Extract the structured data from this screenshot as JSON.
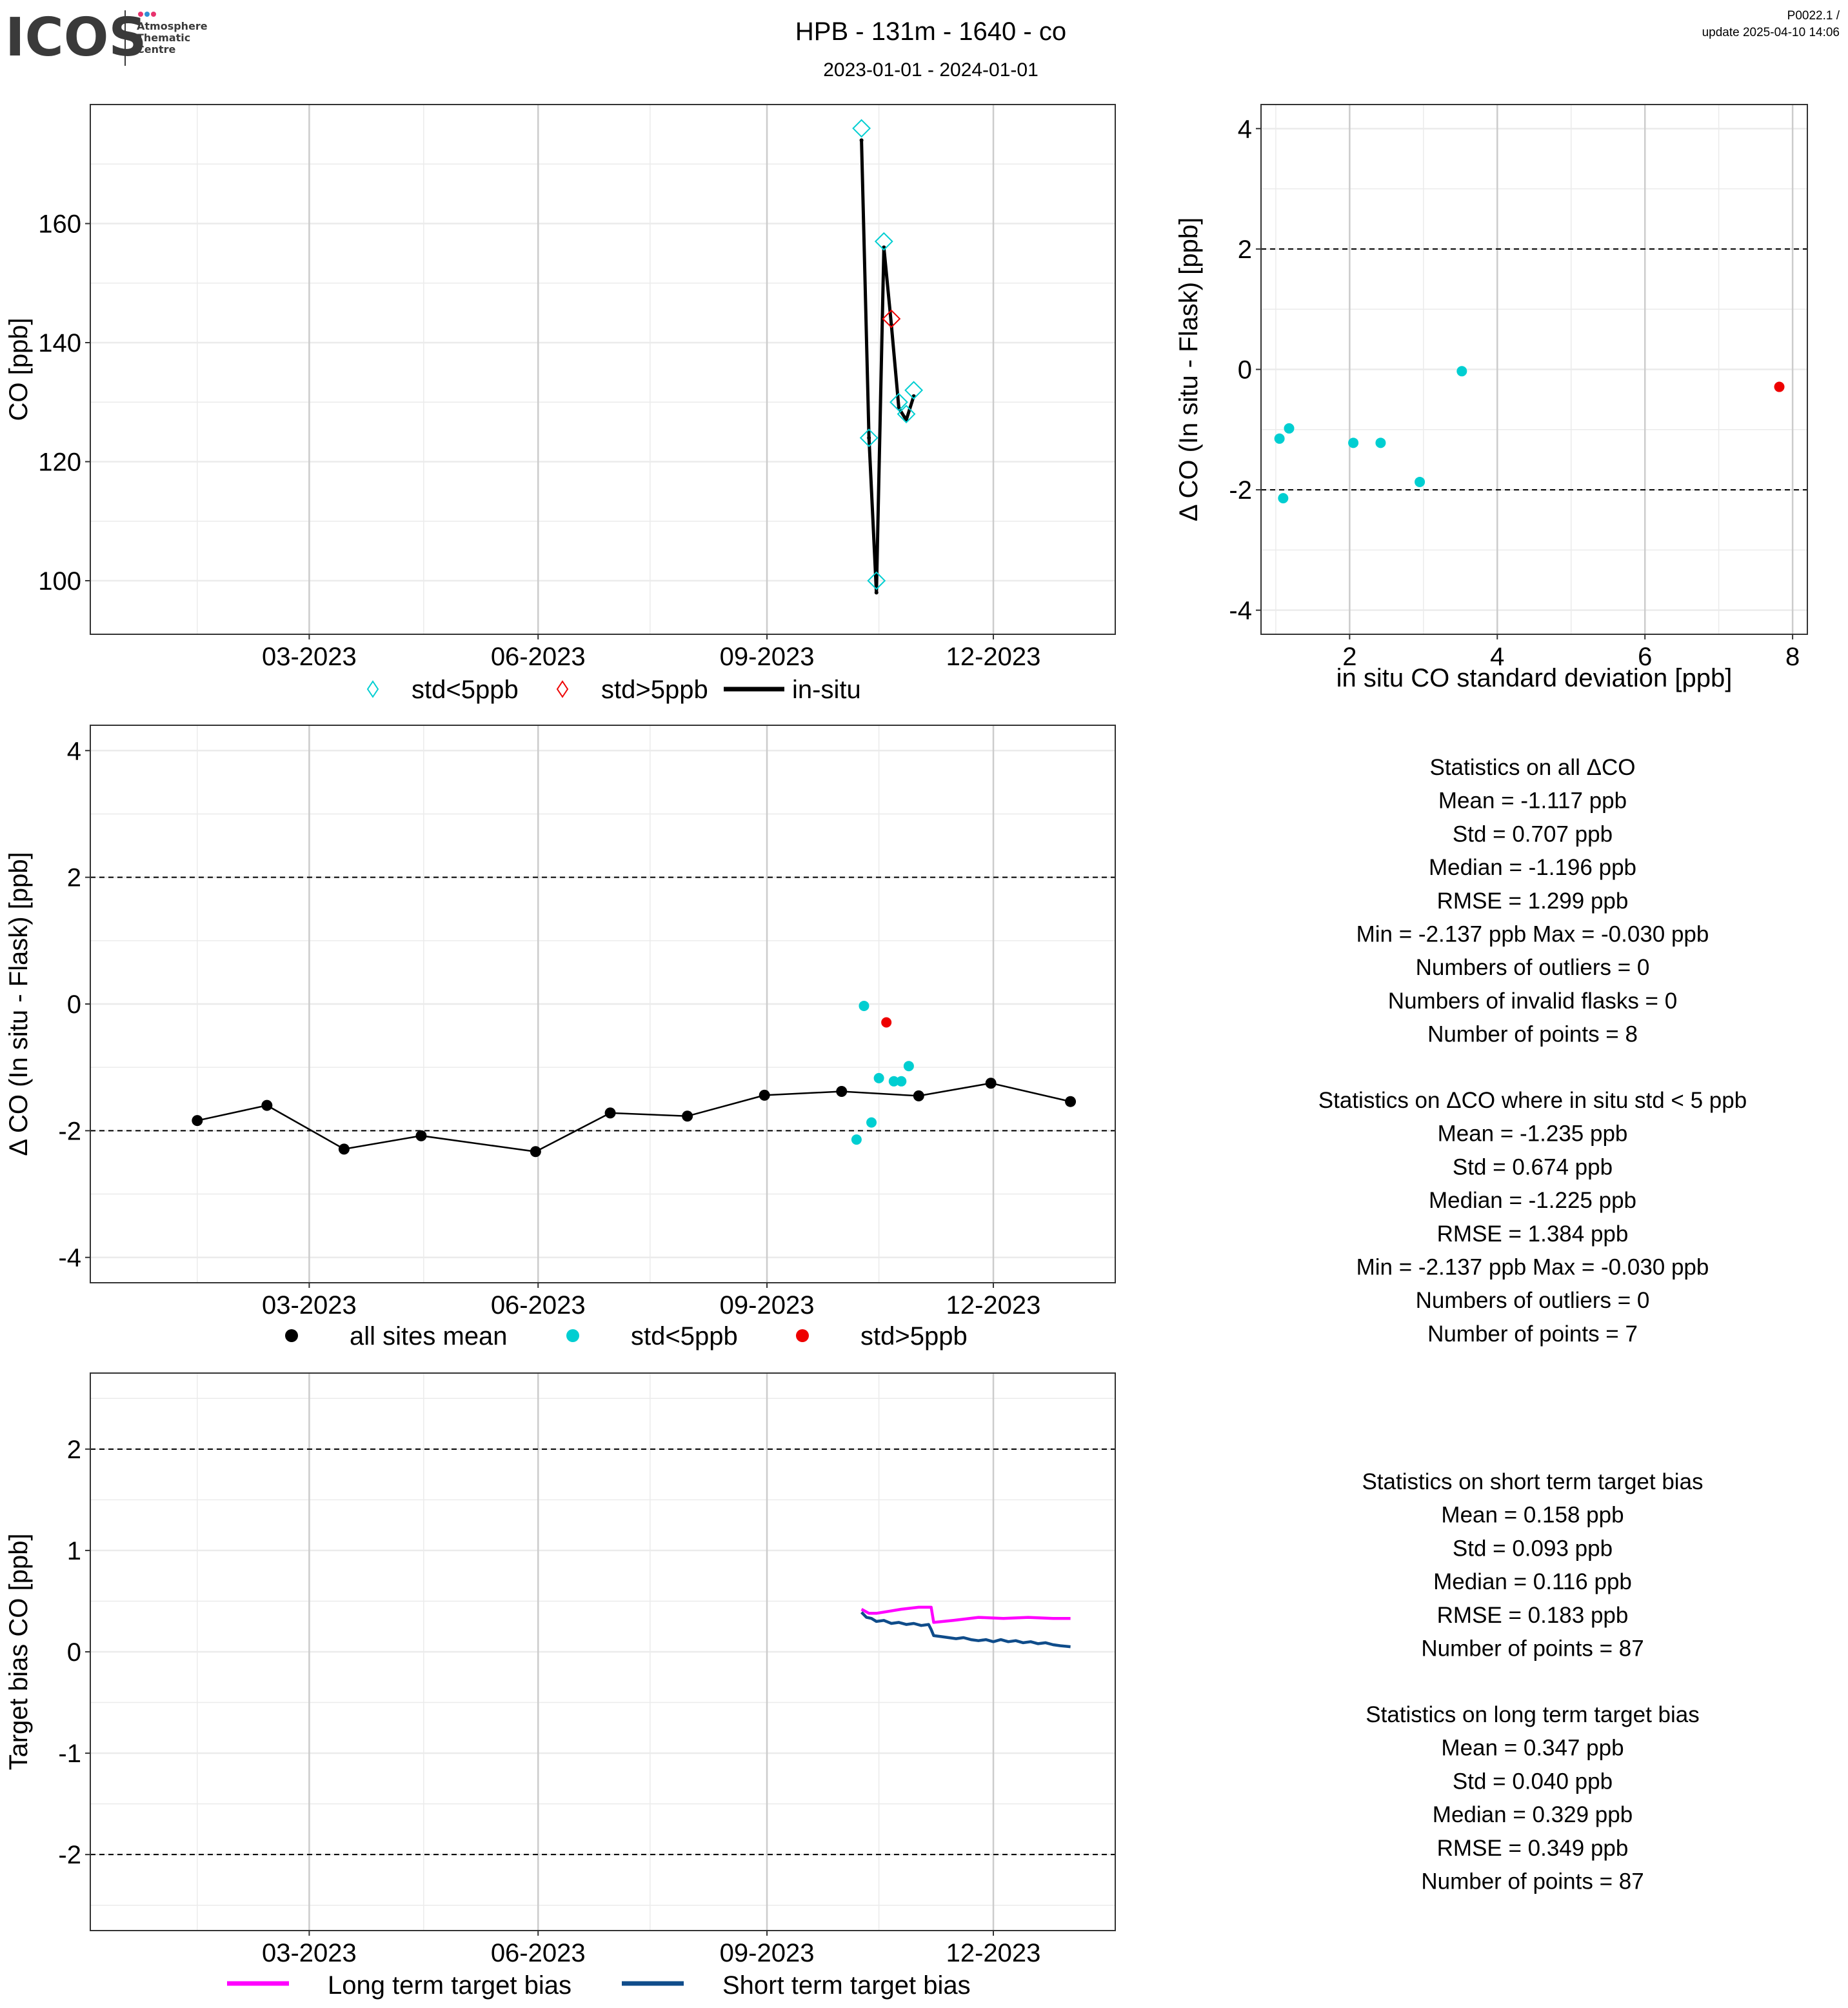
{
  "header": {
    "logo_text": "ICOS",
    "logo_subtitle_lines": [
      "Atmosphere",
      "Thematic",
      "Centre"
    ],
    "logo_dot_colors": [
      "#e8336d",
      "#2f8fd6",
      "#e8336d"
    ],
    "title": "HPB - 131m - 1640 - co",
    "subtitle": "2023-01-01 - 2024-01-01",
    "version": "P0022.1 /",
    "update": "update  2025-04-10 14:06"
  },
  "colors": {
    "cyan": "#00CED1",
    "red": "#EE0000",
    "black": "#000000",
    "magenta": "#FF00FF",
    "navy": "#0F4C8A",
    "grid_major": "#CCCCCC",
    "grid_minor": "#EBEBEB"
  },
  "chart_data": [
    {
      "type": "line",
      "id": "timeseries",
      "ylabel": "CO [ppb]",
      "xlabel": "",
      "x_axis": "date",
      "xlim": [
        "2022-12-03",
        "2024-01-19"
      ],
      "ylim": [
        91,
        180
      ],
      "yticks": [
        100,
        120,
        140,
        160
      ],
      "ytick_labels": [
        "100",
        "120",
        "140",
        "160"
      ],
      "xticks": [
        "2023-03-01",
        "2023-06-01",
        "2023-09-01",
        "2023-12-01"
      ],
      "xtick_labels": [
        "03-2023",
        "06-2023",
        "09-2023",
        "12-2023"
      ],
      "grid": true,
      "legend": [
        "std<5ppb",
        "std>5ppb",
        "in-situ"
      ],
      "series": [
        {
          "name": "in-situ",
          "kind": "line",
          "x": [
            "2023-10-09",
            "2023-10-12",
            "2023-10-15",
            "2023-10-18",
            "2023-10-21",
            "2023-10-24",
            "2023-10-27",
            "2023-10-30"
          ],
          "y": [
            174,
            124,
            98,
            156,
            143,
            129,
            127,
            131
          ]
        },
        {
          "name": "std<5ppb",
          "kind": "diamond",
          "x": [
            "2023-10-09",
            "2023-10-12",
            "2023-10-15",
            "2023-10-18",
            "2023-10-24",
            "2023-10-27",
            "2023-10-30"
          ],
          "y": [
            176,
            124,
            100,
            157,
            130,
            128,
            132
          ]
        },
        {
          "name": "std>5ppb",
          "kind": "diamond",
          "x": [
            "2023-10-21"
          ],
          "y": [
            144
          ]
        }
      ]
    },
    {
      "type": "scatter",
      "id": "std_scatter",
      "xlabel": "in situ CO standard deviation [ppb]",
      "ylabel": "Δ CO (In situ - Flask) [ppb]",
      "xlim": [
        0.8,
        8.2
      ],
      "ylim": [
        -4.4,
        4.4
      ],
      "xticks": [
        2,
        4,
        6,
        8
      ],
      "yticks": [
        -4,
        -2,
        0,
        2,
        4
      ],
      "hlines": [
        -2,
        2
      ],
      "grid": true,
      "series": [
        {
          "name": "std<5ppb",
          "x": [
            1.05,
            1.1,
            1.18,
            2.05,
            2.42,
            2.95,
            3.52
          ],
          "y": [
            -1.15,
            -2.14,
            -0.98,
            -1.22,
            -1.22,
            -1.87,
            -0.03
          ]
        },
        {
          "name": "std>5ppb",
          "x": [
            7.82
          ],
          "y": [
            -0.29
          ]
        }
      ]
    },
    {
      "type": "line",
      "id": "delta_timeseries",
      "ylabel": "Δ CO (In situ - Flask) [ppb]",
      "x_axis": "date",
      "xlim": [
        "2022-12-03",
        "2024-01-19"
      ],
      "ylim": [
        -4.4,
        4.4
      ],
      "xticks": [
        "2023-03-01",
        "2023-06-01",
        "2023-09-01",
        "2023-12-01"
      ],
      "xtick_labels": [
        "03-2023",
        "06-2023",
        "09-2023",
        "12-2023"
      ],
      "yticks": [
        -4,
        -2,
        0,
        2,
        4
      ],
      "hlines": [
        -2,
        2
      ],
      "grid": true,
      "legend": [
        "all sites mean",
        "std<5ppb",
        "std>5ppb"
      ],
      "series": [
        {
          "name": "all sites mean",
          "x": [
            "2023-01-15",
            "2023-02-12",
            "2023-03-15",
            "2023-04-15",
            "2023-05-31",
            "2023-06-30",
            "2023-07-31",
            "2023-08-31",
            "2023-10-01",
            "2023-11-01",
            "2023-11-30",
            "2024-01-01"
          ],
          "y": [
            -1.84,
            -1.6,
            -2.29,
            -2.08,
            -2.33,
            -1.72,
            -1.77,
            -1.44,
            -1.38,
            -1.45,
            -1.25,
            -1.54
          ]
        },
        {
          "name": "std<5ppb",
          "x": [
            "2023-10-07",
            "2023-10-10",
            "2023-10-13",
            "2023-10-16",
            "2023-10-22",
            "2023-10-25",
            "2023-10-28"
          ],
          "y": [
            -2.14,
            -0.03,
            -1.87,
            -1.17,
            -1.22,
            -1.22,
            -0.98
          ]
        },
        {
          "name": "std>5ppb",
          "x": [
            "2023-10-19"
          ],
          "y": [
            -0.29
          ]
        }
      ]
    },
    {
      "type": "line",
      "id": "target_bias",
      "ylabel": "Target bias CO [ppb]",
      "x_axis": "date",
      "xlim": [
        "2022-12-03",
        "2024-01-19"
      ],
      "ylim": [
        -2.75,
        2.75
      ],
      "xticks": [
        "2023-03-01",
        "2023-06-01",
        "2023-09-01",
        "2023-12-01"
      ],
      "xtick_labels": [
        "03-2023",
        "06-2023",
        "09-2023",
        "12-2023"
      ],
      "yticks": [
        -2,
        -1,
        0,
        1,
        2
      ],
      "hlines": [
        -2,
        2
      ],
      "grid": true,
      "legend": [
        "Long term target bias",
        "Short term target bias"
      ],
      "series": [
        {
          "name": "Long term target bias",
          "x": [
            "2023-10-09",
            "2023-10-12",
            "2023-10-15",
            "2023-10-20",
            "2023-10-25",
            "2023-11-01",
            "2023-11-06",
            "2023-11-07",
            "2023-11-15",
            "2023-11-25",
            "2023-12-05",
            "2023-12-15",
            "2023-12-25",
            "2024-01-01"
          ],
          "y": [
            0.42,
            0.38,
            0.38,
            0.4,
            0.42,
            0.44,
            0.44,
            0.29,
            0.31,
            0.34,
            0.33,
            0.34,
            0.33,
            0.33
          ]
        },
        {
          "name": "Short term target bias",
          "x": [
            "2023-10-09",
            "2023-10-11",
            "2023-10-13",
            "2023-10-15",
            "2023-10-18",
            "2023-10-21",
            "2023-10-24",
            "2023-10-27",
            "2023-10-30",
            "2023-11-02",
            "2023-11-05",
            "2023-11-06",
            "2023-11-07",
            "2023-11-10",
            "2023-11-13",
            "2023-11-16",
            "2023-11-19",
            "2023-11-22",
            "2023-11-25",
            "2023-11-28",
            "2023-12-01",
            "2023-12-04",
            "2023-12-07",
            "2023-12-10",
            "2023-12-13",
            "2023-12-16",
            "2023-12-19",
            "2023-12-22",
            "2023-12-25",
            "2023-12-28",
            "2024-01-01"
          ],
          "y": [
            0.39,
            0.34,
            0.33,
            0.3,
            0.31,
            0.28,
            0.29,
            0.27,
            0.28,
            0.26,
            0.27,
            0.22,
            0.16,
            0.15,
            0.14,
            0.13,
            0.14,
            0.12,
            0.11,
            0.12,
            0.1,
            0.12,
            0.1,
            0.11,
            0.09,
            0.1,
            0.08,
            0.09,
            0.07,
            0.06,
            0.05
          ]
        }
      ]
    }
  ],
  "stats": {
    "all": {
      "title": "Statistics on all ΔCO",
      "lines": [
        "Mean =  -1.117 ppb",
        "Std =  0.707 ppb",
        "Median =  -1.196 ppb",
        "RMSE =  1.299 ppb",
        "Min =  -2.137 ppb Max =  -0.030 ppb",
        "Numbers of outliers =  0",
        "Numbers of invalid flasks =  0",
        "Number of points =  8"
      ]
    },
    "std_lt5": {
      "title": "Statistics on ΔCO where in situ std < 5 ppb",
      "lines": [
        "Mean =  -1.235 ppb",
        "Std =  0.674 ppb",
        "Median =  -1.225 ppb",
        "RMSE =  1.384 ppb",
        "Min =  -2.137 ppb Max =  -0.030 ppb",
        "Numbers of outliers =  0",
        "Number of points =  7"
      ]
    },
    "short_term": {
      "title": "Statistics on short term target bias",
      "lines": [
        "Mean =  0.158 ppb",
        "Std =  0.093 ppb",
        "Median =  0.116 ppb",
        "RMSE =  0.183 ppb",
        "Number of points =  87"
      ]
    },
    "long_term": {
      "title": "Statistics on long term target bias",
      "lines": [
        "Mean =  0.347 ppb",
        "Std =  0.040 ppb",
        "Median =  0.329 ppb",
        "RMSE =  0.349 ppb",
        "Number of points =  87"
      ]
    }
  }
}
